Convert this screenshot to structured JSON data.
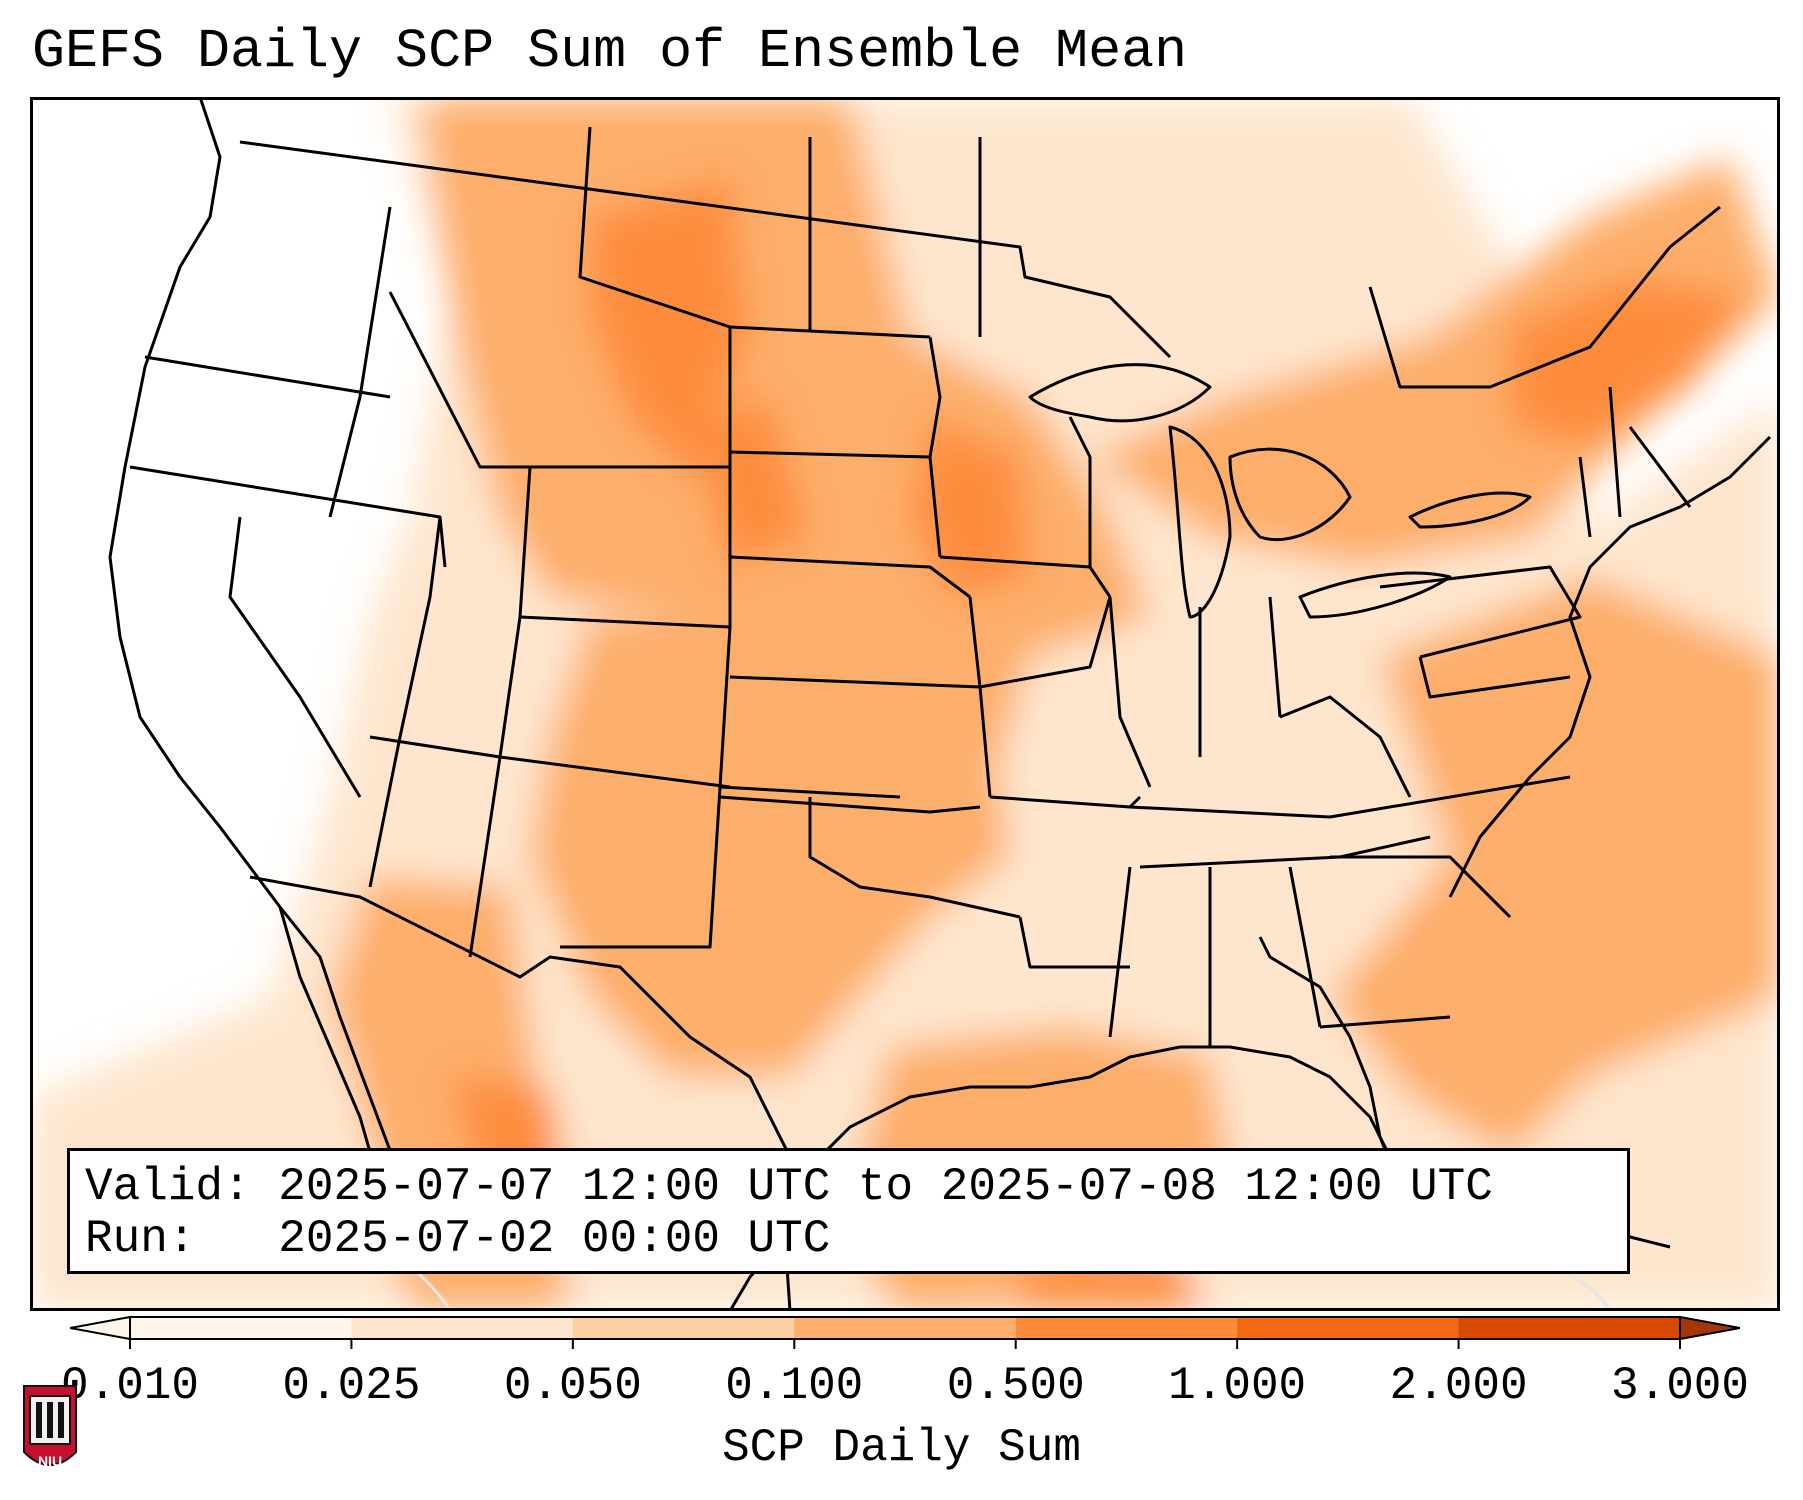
{
  "title": "GEFS Daily SCP Sum of Ensemble Mean",
  "info": {
    "valid_label": "Valid:",
    "valid_value": "2025-07-07 12:00 UTC to 2025-07-08 12:00 UTC",
    "run_label": "Run:",
    "run_value": "2025-07-02 00:00 UTC"
  },
  "colorbar": {
    "label": "SCP Daily Sum",
    "ticks": [
      "0.010",
      "0.025",
      "0.050",
      "0.100",
      "0.500",
      "1.000",
      "2.000",
      "3.000"
    ],
    "colors": [
      "#fff5eb",
      "#fee6ce",
      "#fdd0a2",
      "#fdae6b",
      "#fd8d3c",
      "#f16913",
      "#d94801",
      "#a63603"
    ]
  },
  "logo": {
    "text": "NIU",
    "colors": {
      "shield": "#c8102e",
      "building": "#111111"
    }
  },
  "map": {
    "region": "Continental United States",
    "field": "SCP daily sum",
    "colors": {
      "border": "#000000",
      "background": "#ffffff"
    }
  }
}
